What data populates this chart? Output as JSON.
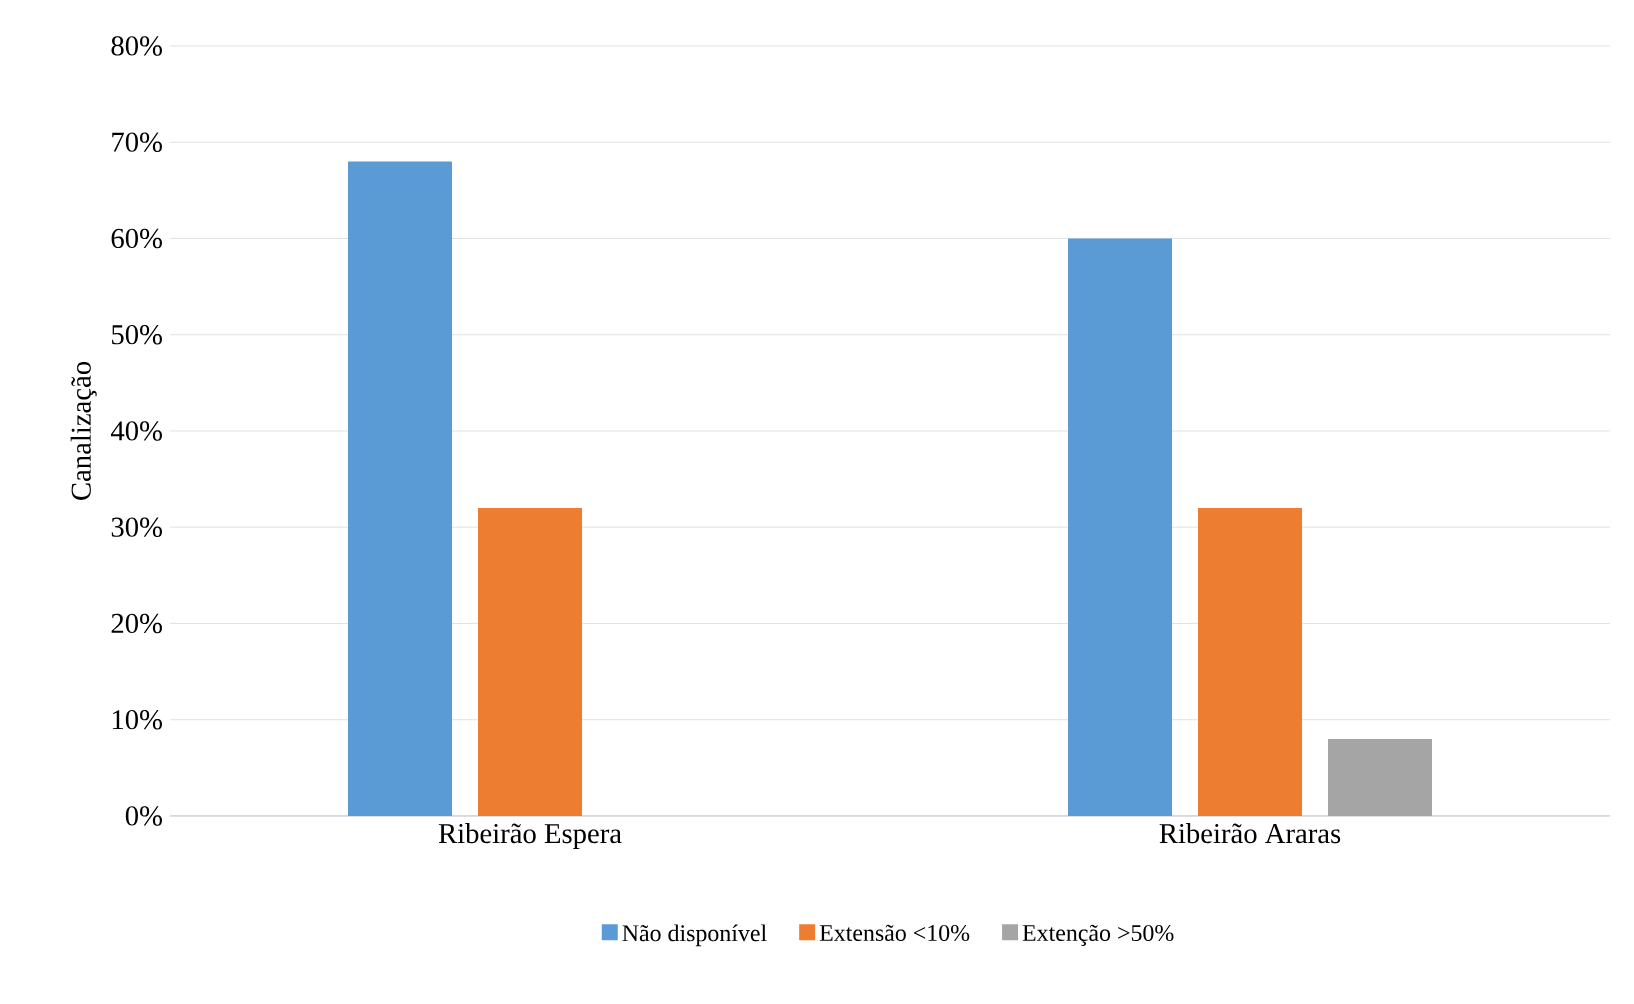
{
  "chart_data": {
    "type": "bar",
    "ylabel": "Canalização",
    "categories": [
      "Ribeirão Espera",
      "Ribeirão Araras"
    ],
    "series": [
      {
        "name": "Não disponível",
        "color": "#5b9bd5",
        "values": [
          68,
          60
        ]
      },
      {
        "name": "Extensão <10%",
        "color": "#ed7d31",
        "values": [
          32,
          32
        ]
      },
      {
        "name": "Extenção >50%",
        "color": "#a5a5a5",
        "values": [
          0,
          8
        ]
      }
    ],
    "ylim": [
      0,
      80
    ],
    "yticks": [
      {
        "value": 0,
        "label": "0%"
      },
      {
        "value": 10,
        "label": "10%"
      },
      {
        "value": 20,
        "label": "20%"
      },
      {
        "value": 30,
        "label": "30%"
      },
      {
        "value": 40,
        "label": "40%"
      },
      {
        "value": 50,
        "label": "50%"
      },
      {
        "value": 60,
        "label": "60%"
      },
      {
        "value": 70,
        "label": "70%"
      },
      {
        "value": 80,
        "label": "80%"
      }
    ],
    "grid": "y",
    "legend": "bottom"
  }
}
